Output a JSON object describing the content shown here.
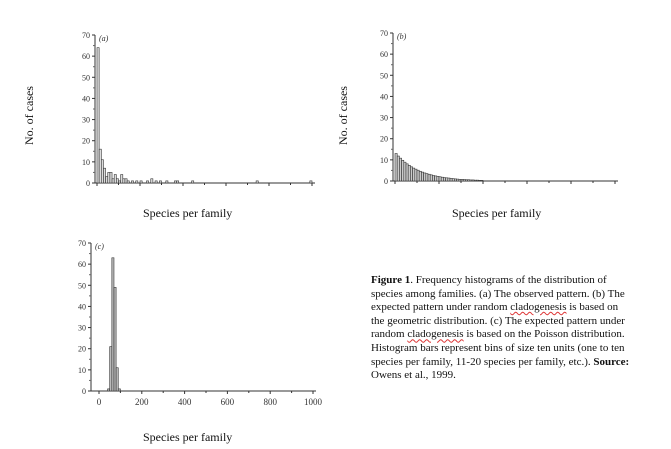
{
  "chart_data": [
    {
      "type": "bar",
      "panel_label": "(a)",
      "ylabel": "No. of cases",
      "xlabel": "Species per family",
      "ylim": [
        0,
        70
      ],
      "yticks": [
        "0",
        "10",
        "20",
        "30",
        "40",
        "50",
        "60",
        "70"
      ],
      "xlim": [
        0,
        1000
      ],
      "xticks": [],
      "bin_width": 10,
      "x": [
        5,
        15,
        25,
        35,
        45,
        55,
        65,
        75,
        85,
        95,
        105,
        115,
        125,
        135,
        145,
        165,
        185,
        205,
        235,
        255,
        275,
        295,
        325,
        365,
        375,
        445,
        745,
        995
      ],
      "values": [
        64,
        16,
        11,
        7,
        3,
        5,
        5,
        2,
        4,
        2,
        1,
        4,
        2,
        2,
        1,
        1,
        1,
        1,
        1,
        2,
        1,
        1,
        1,
        1,
        1,
        1,
        1,
        1
      ]
    },
    {
      "type": "bar",
      "panel_label": "(b)",
      "ylabel": "No. of cases",
      "xlabel": "Species per family",
      "ylim": [
        0,
        70
      ],
      "yticks": [
        "0",
        "10",
        "20",
        "30",
        "40",
        "50",
        "60",
        "70"
      ],
      "xlim": [
        0,
        1000
      ],
      "xticks": [],
      "bin_width": 10,
      "x": [
        5,
        15,
        25,
        35,
        45,
        55,
        65,
        75,
        85,
        95,
        105,
        115,
        125,
        135,
        145,
        155,
        165,
        175,
        185,
        195,
        205,
        215,
        225,
        235,
        245,
        255,
        265,
        275,
        285,
        295,
        305,
        315,
        325,
        335,
        345,
        355,
        365,
        375,
        385,
        395
      ],
      "values": [
        13,
        11.8,
        10.8,
        9.8,
        8.9,
        8.1,
        7.4,
        6.7,
        6.1,
        5.6,
        5.1,
        4.6,
        4.2,
        3.8,
        3.5,
        3.2,
        2.9,
        2.6,
        2.4,
        2.2,
        2.0,
        1.8,
        1.6,
        1.5,
        1.4,
        1.2,
        1.1,
        1.0,
        0.9,
        0.8,
        0.8,
        0.7,
        0.6,
        0.6,
        0.5,
        0.5,
        0.4,
        0.4,
        0.3,
        0.3
      ]
    },
    {
      "type": "bar",
      "panel_label": "(c)",
      "ylabel": "",
      "xlabel": "Species per family",
      "ylim": [
        0,
        70
      ],
      "yticks": [
        "0",
        "10",
        "20",
        "30",
        "40",
        "50",
        "60",
        "70"
      ],
      "xlim": [
        0,
        1000
      ],
      "xticks": [
        "0",
        "200",
        "400",
        "600",
        "800",
        "1000"
      ],
      "bin_width": 10,
      "x": [
        45,
        55,
        65,
        75,
        85,
        95
      ],
      "values": [
        1,
        21,
        63,
        49,
        11,
        1
      ]
    }
  ],
  "caption": {
    "figure_label": "Figure 1",
    "text_1": ". Frequency histograms of the distribution of species among families. (a) The observed pattern. (b) The expected pattern under random ",
    "word_1": "cladogenesis",
    "text_2": " is based on the geometric distribution. (c) The expected pattern under random ",
    "word_2": "cladogenesis",
    "text_3": " is based on the Poisson distribution. Histogram bars represent bins of size ten units (one to ten species per family, 11-20 species per family, etc.). ",
    "source_label": "Source:",
    "source_text": " Owens et al., 1999."
  }
}
